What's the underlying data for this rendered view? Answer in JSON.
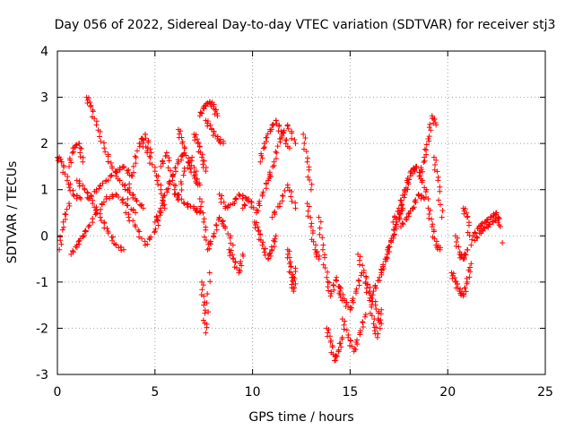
{
  "chart_data": {
    "type": "scatter",
    "title": "Day 056 of 2022, Sidereal Day-to-day VTEC variation (SDTVAR) for receiver stj3",
    "xlabel": "GPS time / hours",
    "ylabel": "SDTVAR / TECUs",
    "xlim": [
      0,
      25
    ],
    "ylim": [
      -3,
      4
    ],
    "xticks": [
      0,
      5,
      10,
      15,
      20,
      25
    ],
    "yticks": [
      -3,
      -2,
      -1,
      0,
      1,
      2,
      3,
      4
    ],
    "grid": true,
    "marker": "+",
    "series": [
      {
        "name": "SDTVAR",
        "color": "#ff0000",
        "segments": [
          {
            "x": [
              0.0,
              0.2,
              0.5,
              0.8,
              1.2
            ],
            "y": [
              1.7,
              1.6,
              1.2,
              0.9,
              0.8
            ]
          },
          {
            "x": [
              0.1,
              0.3,
              0.6
            ],
            "y": [
              -0.3,
              0.3,
              0.7
            ]
          },
          {
            "x": [
              0.6,
              0.8,
              1.1,
              1.3
            ],
            "y": [
              1.5,
              1.9,
              2.0,
              1.6
            ]
          },
          {
            "x": [
              0.7,
              1.0,
              1.3,
              1.6,
              2.0,
              2.5,
              3.0,
              3.5,
              4.0
            ],
            "y": [
              -0.4,
              -0.2,
              0.0,
              0.2,
              0.5,
              0.8,
              0.9,
              0.7,
              0.5
            ]
          },
          {
            "x": [
              1.0,
              1.4,
              1.8,
              2.2,
              2.6,
              3.0,
              3.4
            ],
            "y": [
              1.2,
              1.0,
              0.7,
              0.4,
              0.1,
              -0.2,
              -0.3
            ]
          },
          {
            "x": [
              1.5,
              1.7,
              2.0,
              2.4,
              2.8,
              3.2,
              3.6,
              4.0,
              4.4
            ],
            "y": [
              3.0,
              2.8,
              2.4,
              1.9,
              1.5,
              1.2,
              1.0,
              0.8,
              0.6
            ]
          },
          {
            "x": [
              1.6,
              2.0,
              2.5,
              3.0,
              3.4,
              3.8
            ],
            "y": [
              0.8,
              1.0,
              1.2,
              1.4,
              1.5,
              1.3
            ]
          },
          {
            "x": [
              3.6,
              3.9,
              4.2,
              4.5,
              4.8
            ],
            "y": [
              0.8,
              1.5,
              2.0,
              2.2,
              1.8
            ]
          },
          {
            "x": [
              3.5,
              4.0,
              4.5,
              5.0,
              5.3
            ],
            "y": [
              0.5,
              0.2,
              -0.2,
              0.1,
              0.5
            ]
          },
          {
            "x": [
              4.3,
              4.6,
              5.0,
              5.3,
              5.5
            ],
            "y": [
              2.1,
              1.8,
              1.4,
              1.0,
              0.6
            ]
          },
          {
            "x": [
              5.0,
              5.3,
              5.6,
              5.9,
              6.2,
              6.5
            ],
            "y": [
              0.3,
              0.6,
              1.0,
              1.3,
              1.6,
              1.8
            ]
          },
          {
            "x": [
              5.3,
              5.6,
              5.9,
              6.2,
              6.5,
              6.9,
              7.2
            ],
            "y": [
              1.5,
              1.8,
              1.2,
              0.8,
              1.4,
              1.7,
              1.1
            ]
          },
          {
            "x": [
              6.0,
              6.5,
              7.0,
              7.3
            ],
            "y": [
              0.9,
              0.7,
              0.6,
              0.5
            ]
          },
          {
            "x": [
              6.2,
              6.4,
              6.7,
              7.0,
              7.3
            ],
            "y": [
              2.3,
              2.0,
              1.6,
              1.3,
              1.1
            ]
          },
          {
            "x": [
              7.0,
              7.2,
              7.4,
              7.6
            ],
            "y": [
              2.2,
              2.0,
              1.7,
              1.4
            ]
          },
          {
            "x": [
              7.3,
              7.5,
              7.8,
              8.0,
              8.2
            ],
            "y": [
              2.6,
              2.8,
              2.9,
              2.8,
              2.6
            ]
          },
          {
            "x": [
              7.6,
              7.9,
              8.2,
              8.5
            ],
            "y": [
              2.5,
              2.3,
              2.1,
              2.0
            ]
          },
          {
            "x": [
              7.3,
              7.5,
              7.7,
              8.0,
              8.3,
              8.6,
              9.0
            ],
            "y": [
              0.8,
              0.3,
              -0.3,
              0.0,
              0.4,
              0.2,
              -0.2
            ]
          },
          {
            "x": [
              7.4,
              7.5,
              7.6,
              7.8
            ],
            "y": [
              -1.0,
              -1.5,
              -2.1,
              -0.8
            ]
          },
          {
            "x": [
              8.3,
              8.6,
              9.0,
              9.3,
              9.7
            ],
            "y": [
              0.9,
              0.6,
              0.7,
              0.9,
              0.8
            ]
          },
          {
            "x": [
              8.8,
              9.0,
              9.3,
              9.5
            ],
            "y": [
              -0.3,
              -0.5,
              -0.8,
              -0.4
            ]
          },
          {
            "x": [
              9.5,
              9.8,
              10.2,
              10.5,
              10.9
            ],
            "y": [
              0.6,
              0.8,
              0.5,
              0.9,
              1.3
            ]
          },
          {
            "x": [
              10.1,
              10.3,
              10.5,
              10.8,
              11.0,
              11.2
            ],
            "y": [
              0.3,
              0.1,
              -0.2,
              -0.5,
              -0.3,
              0.0
            ]
          },
          {
            "x": [
              10.4,
              10.6,
              10.9,
              11.2,
              11.5,
              11.9
            ],
            "y": [
              1.6,
              2.0,
              2.3,
              2.5,
              2.2,
              1.9
            ]
          },
          {
            "x": [
              10.8,
              11.1,
              11.4,
              11.8,
              12.2
            ],
            "y": [
              1.2,
              1.6,
              2.1,
              2.4,
              2.0
            ]
          },
          {
            "x": [
              11.0,
              11.4,
              11.8,
              12.2
            ],
            "y": [
              0.4,
              0.7,
              1.1,
              0.6
            ]
          },
          {
            "x": [
              11.8,
              11.9,
              12.0,
              12.1,
              12.2
            ],
            "y": [
              -0.3,
              -0.6,
              -0.9,
              -1.2,
              -0.7
            ]
          },
          {
            "x": [
              12.6,
              12.8,
              13.0
            ],
            "y": [
              2.2,
              1.6,
              1.0
            ]
          },
          {
            "x": [
              12.8,
              13.0,
              13.2,
              13.4
            ],
            "y": [
              0.7,
              0.2,
              -0.3,
              -0.5
            ]
          },
          {
            "x": [
              13.4,
              13.6,
              13.8,
              14.0,
              14.3,
              14.6
            ],
            "y": [
              0.4,
              -0.3,
              -0.9,
              -1.3,
              -0.9,
              -1.4
            ]
          },
          {
            "x": [
              13.8,
              14.0,
              14.2,
              14.4,
              14.6
            ],
            "y": [
              -2.0,
              -2.3,
              -2.7,
              -2.5,
              -2.2
            ]
          },
          {
            "x": [
              14.4,
              14.7,
              15.0,
              15.3,
              15.6
            ],
            "y": [
              -1.1,
              -1.4,
              -1.6,
              -1.2,
              -0.8
            ]
          },
          {
            "x": [
              14.6,
              14.9,
              15.2,
              15.5,
              15.8
            ],
            "y": [
              -1.8,
              -2.2,
              -2.5,
              -2.1,
              -1.7
            ]
          },
          {
            "x": [
              15.4,
              15.7,
              16.0,
              16.3,
              16.6
            ],
            "y": [
              -0.4,
              -0.8,
              -1.2,
              -1.5,
              -1.9
            ]
          },
          {
            "x": [
              15.8,
              16.0,
              16.2,
              16.4,
              16.6
            ],
            "y": [
              -1.0,
              -1.4,
              -1.9,
              -2.2,
              -1.6
            ]
          },
          {
            "x": [
              16.2,
              16.5,
              16.8,
              17.1,
              17.4,
              17.7
            ],
            "y": [
              -1.2,
              -0.9,
              -0.5,
              -0.1,
              0.3,
              0.6
            ]
          },
          {
            "x": [
              16.6,
              16.9,
              17.2,
              17.5,
              17.8,
              18.1,
              18.4
            ],
            "y": [
              -0.8,
              -0.4,
              0.0,
              0.4,
              0.9,
              1.3,
              1.5
            ]
          },
          {
            "x": [
              17.2,
              17.5,
              17.8,
              18.1,
              18.4,
              18.7,
              19.0
            ],
            "y": [
              0.3,
              0.6,
              1.0,
              1.4,
              1.5,
              1.2,
              0.8
            ]
          },
          {
            "x": [
              17.6,
              17.9,
              18.2,
              18.5,
              18.8
            ],
            "y": [
              0.2,
              0.4,
              0.6,
              0.9,
              0.8
            ]
          },
          {
            "x": [
              18.6,
              18.8,
              19.0,
              19.2,
              19.4
            ],
            "y": [
              1.3,
              1.7,
              2.1,
              2.6,
              2.4
            ]
          },
          {
            "x": [
              19.0,
              19.2,
              19.4,
              19.6
            ],
            "y": [
              0.6,
              0.2,
              -0.2,
              -0.3
            ]
          },
          {
            "x": [
              19.3,
              19.5,
              19.7
            ],
            "y": [
              1.7,
              1.2,
              0.4
            ]
          },
          {
            "x": [
              20.2,
              20.4,
              20.6,
              20.8,
              21.0,
              21.2
            ],
            "y": [
              -0.8,
              -1.0,
              -1.2,
              -1.3,
              -1.0,
              -0.6
            ]
          },
          {
            "x": [
              20.4,
              20.6,
              20.8,
              21.0
            ],
            "y": [
              0.0,
              -0.4,
              -0.5,
              -0.3
            ]
          },
          {
            "x": [
              20.8,
              21.0,
              21.2
            ],
            "y": [
              0.6,
              0.4,
              -0.2
            ]
          },
          {
            "x": [
              21.3,
              21.6,
              21.9,
              22.2,
              22.5,
              22.7
            ],
            "y": [
              0.0,
              0.2,
              0.3,
              0.4,
              0.5,
              0.2
            ]
          },
          {
            "x": [
              21.4,
              21.7,
              22.0,
              22.3,
              22.6
            ],
            "y": [
              -0.1,
              0.1,
              0.2,
              0.3,
              0.4
            ]
          },
          {
            "x": [
              22.8
            ],
            "y": [
              -0.15
            ]
          }
        ]
      }
    ]
  }
}
